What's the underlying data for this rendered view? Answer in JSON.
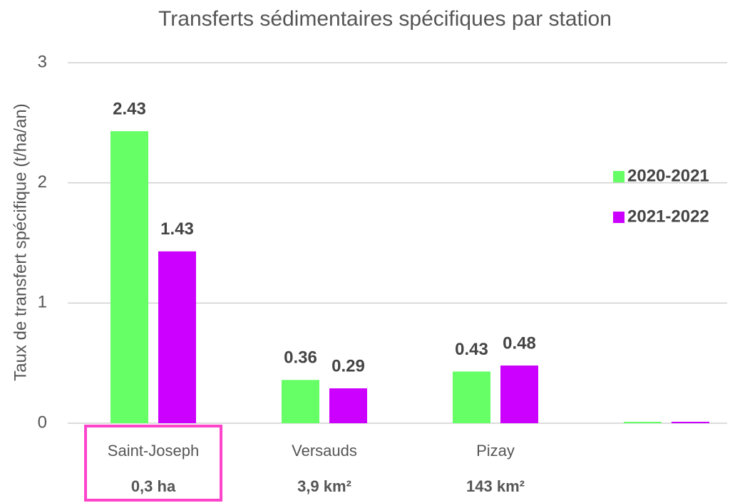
{
  "chart_data": {
    "type": "bar",
    "title": "Transferts sédimentaires spécifiques par station",
    "y_label": "Taux de transfert spécifique (t/ha/an)",
    "categories": [
      "Saint-Joseph",
      "Versauds",
      "Pizay",
      null
    ],
    "sublabels": [
      "0,3 ha",
      "3,9 km²",
      "143 km²",
      null
    ],
    "series": [
      {
        "name": "2020-2021",
        "color": "#66ff66",
        "values": [
          2.43,
          0.36,
          0.43,
          0
        ]
      },
      {
        "name": "2021-2022",
        "color": "#cc00ff",
        "values": [
          1.43,
          0.29,
          0.48,
          0
        ]
      }
    ],
    "ylim": [
      0,
      3
    ],
    "yticks": [
      0,
      1,
      2,
      3
    ],
    "grid": true,
    "legend": "right",
    "highlight_index": 0
  }
}
